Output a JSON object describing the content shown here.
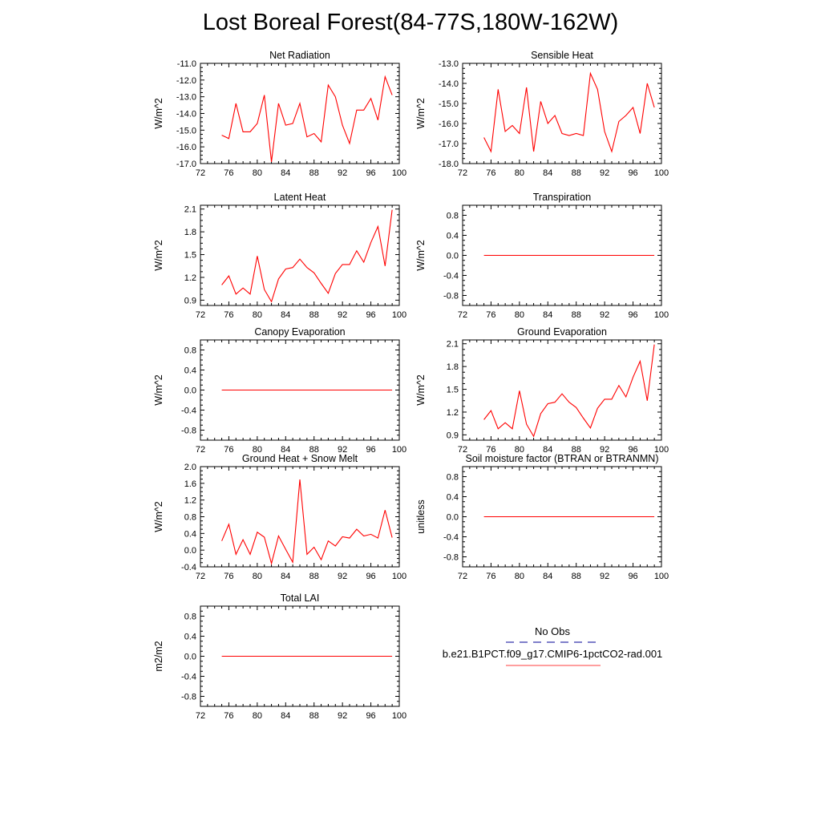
{
  "title": "Lost Boreal Forest(84-77S,180W-162W)",
  "chart_data": [
    {
      "type": "line",
      "title": "Net Radiation",
      "ylabel": "W/m^2",
      "xlim": [
        72,
        100
      ],
      "ylim": [
        -17.0,
        -11.0
      ],
      "xticks": [
        "72",
        "76",
        "80",
        "84",
        "88",
        "92",
        "96",
        "100"
      ],
      "yticks": [
        "-11.0",
        "-12.0",
        "-13.0",
        "-14.0",
        "-15.0",
        "-16.0",
        "-17.0"
      ],
      "x": [
        75,
        76,
        77,
        78,
        79,
        80,
        81,
        82,
        83,
        84,
        85,
        86,
        87,
        88,
        89,
        90,
        91,
        92,
        93,
        94,
        95,
        96,
        97,
        98,
        99
      ],
      "series": [
        {
          "name": "b.e21.B1PCT.f09_g17.CMIP6-1pctCO2-rad.001",
          "color": "#ff0000",
          "values": [
            -15.3,
            -15.5,
            -13.4,
            -15.1,
            -15.1,
            -14.6,
            -12.9,
            -16.9,
            -13.4,
            -14.7,
            -14.6,
            -13.4,
            -15.4,
            -15.2,
            -15.7,
            -12.3,
            -13.0,
            -14.7,
            -15.8,
            -13.8,
            -13.8,
            -13.1,
            -14.4,
            -11.8,
            -12.9
          ]
        }
      ]
    },
    {
      "type": "line",
      "title": "Sensible Heat",
      "ylabel": "W/m^2",
      "xlim": [
        72,
        100
      ],
      "ylim": [
        -18.0,
        -13.0
      ],
      "xticks": [
        "72",
        "76",
        "80",
        "84",
        "88",
        "92",
        "96",
        "100"
      ],
      "yticks": [
        "-13.0",
        "-14.0",
        "-15.0",
        "-16.0",
        "-17.0",
        "-18.0"
      ],
      "x": [
        75,
        76,
        77,
        78,
        79,
        80,
        81,
        82,
        83,
        84,
        85,
        86,
        87,
        88,
        89,
        90,
        91,
        92,
        93,
        94,
        95,
        96,
        97,
        98,
        99
      ],
      "series": [
        {
          "name": "b.e21.B1PCT.f09_g17.CMIP6-1pctCO2-rad.001",
          "color": "#ff0000",
          "values": [
            -16.7,
            -17.4,
            -14.3,
            -16.4,
            -16.1,
            -16.5,
            -14.2,
            -17.4,
            -14.9,
            -16.0,
            -15.6,
            -16.5,
            -16.6,
            -16.5,
            -16.6,
            -13.5,
            -14.3,
            -16.4,
            -17.4,
            -15.9,
            -15.6,
            -15.2,
            -16.5,
            -14.0,
            -15.2
          ]
        }
      ]
    },
    {
      "type": "line",
      "title": "Latent Heat",
      "ylabel": "W/m^2",
      "xlim": [
        72,
        100
      ],
      "ylim": [
        0.83,
        2.15
      ],
      "xticks": [
        "72",
        "76",
        "80",
        "84",
        "88",
        "92",
        "96",
        "100"
      ],
      "yticks": [
        "2.1",
        "1.8",
        "1.5",
        "1.2",
        "0.9"
      ],
      "x": [
        75,
        76,
        77,
        78,
        79,
        80,
        81,
        82,
        83,
        84,
        85,
        86,
        87,
        88,
        89,
        90,
        91,
        92,
        93,
        94,
        95,
        96,
        97,
        98,
        99
      ],
      "series": [
        {
          "name": "b.e21.B1PCT.f09_g17.CMIP6-1pctCO2-rad.001",
          "color": "#ff0000",
          "values": [
            1.1,
            1.22,
            0.98,
            1.06,
            0.98,
            1.48,
            1.04,
            0.88,
            1.18,
            1.31,
            1.33,
            1.44,
            1.33,
            1.26,
            1.12,
            0.99,
            1.25,
            1.37,
            1.37,
            1.55,
            1.4,
            1.66,
            1.87,
            1.35,
            2.09
          ]
        }
      ]
    },
    {
      "type": "line",
      "title": "Transpiration",
      "ylabel": "W/m^2",
      "xlim": [
        72,
        100
      ],
      "ylim": [
        -1.0,
        1.0
      ],
      "xticks": [
        "72",
        "76",
        "80",
        "84",
        "88",
        "92",
        "96",
        "100"
      ],
      "yticks": [
        "0.8",
        "0.4",
        "0.0",
        "-0.4",
        "-0.8"
      ],
      "x": [
        75,
        76,
        77,
        78,
        79,
        80,
        81,
        82,
        83,
        84,
        85,
        86,
        87,
        88,
        89,
        90,
        91,
        92,
        93,
        94,
        95,
        96,
        97,
        98,
        99
      ],
      "series": [
        {
          "name": "b.e21.B1PCT.f09_g17.CMIP6-1pctCO2-rad.001",
          "color": "#ff0000",
          "values": [
            0,
            0,
            0,
            0,
            0,
            0,
            0,
            0,
            0,
            0,
            0,
            0,
            0,
            0,
            0,
            0,
            0,
            0,
            0,
            0,
            0,
            0,
            0,
            0,
            0
          ]
        }
      ]
    },
    {
      "type": "line",
      "title": "Canopy Evaporation",
      "ylabel": "W/m^2",
      "xlim": [
        72,
        100
      ],
      "ylim": [
        -1.0,
        1.0
      ],
      "xticks": [
        "72",
        "76",
        "80",
        "84",
        "88",
        "92",
        "96",
        "100"
      ],
      "yticks": [
        "0.8",
        "0.4",
        "0.0",
        "-0.4",
        "-0.8"
      ],
      "x": [
        75,
        76,
        77,
        78,
        79,
        80,
        81,
        82,
        83,
        84,
        85,
        86,
        87,
        88,
        89,
        90,
        91,
        92,
        93,
        94,
        95,
        96,
        97,
        98,
        99
      ],
      "series": [
        {
          "name": "b.e21.B1PCT.f09_g17.CMIP6-1pctCO2-rad.001",
          "color": "#ff0000",
          "values": [
            0,
            0,
            0,
            0,
            0,
            0,
            0,
            0,
            0,
            0,
            0,
            0,
            0,
            0,
            0,
            0,
            0,
            0,
            0,
            0,
            0,
            0,
            0,
            0,
            0
          ]
        }
      ]
    },
    {
      "type": "line",
      "title": "Ground Evaporation",
      "ylabel": "W/m^2",
      "xlim": [
        72,
        100
      ],
      "ylim": [
        0.83,
        2.15
      ],
      "xticks": [
        "72",
        "76",
        "80",
        "84",
        "88",
        "92",
        "96",
        "100"
      ],
      "yticks": [
        "2.1",
        "1.8",
        "1.5",
        "1.2",
        "0.9"
      ],
      "x": [
        75,
        76,
        77,
        78,
        79,
        80,
        81,
        82,
        83,
        84,
        85,
        86,
        87,
        88,
        89,
        90,
        91,
        92,
        93,
        94,
        95,
        96,
        97,
        98,
        99
      ],
      "series": [
        {
          "name": "b.e21.B1PCT.f09_g17.CMIP6-1pctCO2-rad.001",
          "color": "#ff0000",
          "values": [
            1.1,
            1.22,
            0.98,
            1.06,
            0.98,
            1.48,
            1.04,
            0.88,
            1.18,
            1.31,
            1.33,
            1.44,
            1.33,
            1.26,
            1.12,
            0.99,
            1.25,
            1.37,
            1.37,
            1.55,
            1.4,
            1.66,
            1.87,
            1.35,
            2.09
          ]
        }
      ]
    },
    {
      "type": "line",
      "title": "Ground Heat + Snow Melt",
      "ylabel": "W/m^2",
      "xlim": [
        72,
        100
      ],
      "ylim": [
        -0.4,
        2.0
      ],
      "xticks": [
        "72",
        "76",
        "80",
        "84",
        "88",
        "92",
        "96",
        "100"
      ],
      "yticks": [
        "2.0",
        "1.6",
        "1.2",
        "0.8",
        "0.4",
        "0.0",
        "-0.4"
      ],
      "x": [
        75,
        76,
        77,
        78,
        79,
        80,
        81,
        82,
        83,
        84,
        85,
        86,
        87,
        88,
        89,
        90,
        91,
        92,
        93,
        94,
        95,
        96,
        97,
        98,
        99
      ],
      "series": [
        {
          "name": "b.e21.B1PCT.f09_g17.CMIP6-1pctCO2-rad.001",
          "color": "#ff0000",
          "values": [
            0.22,
            0.62,
            -0.1,
            0.25,
            -0.1,
            0.43,
            0.31,
            -0.32,
            0.34,
            0.02,
            -0.29,
            1.69,
            -0.1,
            0.07,
            -0.23,
            0.22,
            0.1,
            0.32,
            0.29,
            0.5,
            0.34,
            0.38,
            0.29,
            0.96,
            0.3
          ]
        }
      ]
    },
    {
      "type": "line",
      "title": "Soil moisture factor (BTRAN or BTRANMN)",
      "ylabel": "unitless",
      "xlim": [
        72,
        100
      ],
      "ylim": [
        -1.0,
        1.0
      ],
      "xticks": [
        "72",
        "76",
        "80",
        "84",
        "88",
        "92",
        "96",
        "100"
      ],
      "yticks": [
        "0.8",
        "0.4",
        "0.0",
        "-0.4",
        "-0.8"
      ],
      "x": [
        75,
        76,
        77,
        78,
        79,
        80,
        81,
        82,
        83,
        84,
        85,
        86,
        87,
        88,
        89,
        90,
        91,
        92,
        93,
        94,
        95,
        96,
        97,
        98,
        99
      ],
      "series": [
        {
          "name": "b.e21.B1PCT.f09_g17.CMIP6-1pctCO2-rad.001",
          "color": "#ff0000",
          "values": [
            0,
            0,
            0,
            0,
            0,
            0,
            0,
            0,
            0,
            0,
            0,
            0,
            0,
            0,
            0,
            0,
            0,
            0,
            0,
            0,
            0,
            0,
            0,
            0,
            0
          ]
        }
      ]
    },
    {
      "type": "line",
      "title": "Total LAI",
      "ylabel": "m2/m2",
      "xlim": [
        72,
        100
      ],
      "ylim": [
        -1.0,
        1.0
      ],
      "xticks": [
        "72",
        "76",
        "80",
        "84",
        "88",
        "92",
        "96",
        "100"
      ],
      "yticks": [
        "0.8",
        "0.4",
        "0.0",
        "-0.4",
        "-0.8"
      ],
      "x": [
        75,
        76,
        77,
        78,
        79,
        80,
        81,
        82,
        83,
        84,
        85,
        86,
        87,
        88,
        89,
        90,
        91,
        92,
        93,
        94,
        95,
        96,
        97,
        98,
        99
      ],
      "series": [
        {
          "name": "b.e21.B1PCT.f09_g17.CMIP6-1pctCO2-rad.001",
          "color": "#ff0000",
          "values": [
            0,
            0,
            0,
            0,
            0,
            0,
            0,
            0,
            0,
            0,
            0,
            0,
            0,
            0,
            0,
            0,
            0,
            0,
            0,
            0,
            0,
            0,
            0,
            0,
            0
          ]
        }
      ]
    }
  ],
  "legend": {
    "obs_label": "No Obs",
    "obs_color": "#3333aa",
    "model_label": "b.e21.B1PCT.f09_g17.CMIP6-1pctCO2-rad.001",
    "model_color": "#ff6666"
  }
}
